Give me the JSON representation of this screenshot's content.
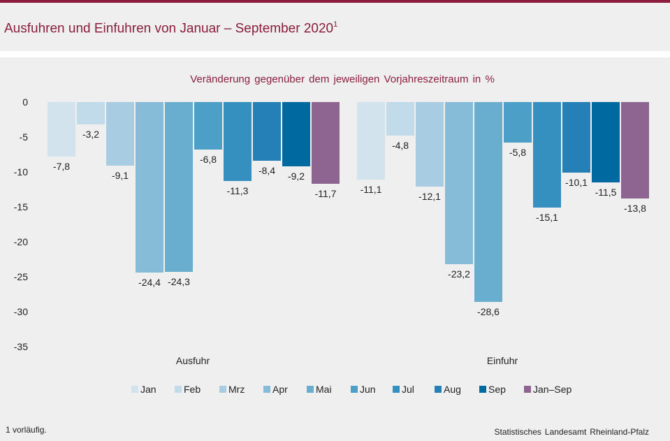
{
  "header": {
    "title": "Ausfuhren und Einfuhren von Januar – September 2020",
    "title_sup": "1"
  },
  "colors": {
    "brand": "#8b1e3f",
    "months": [
      "#d3e3ee",
      "#c2dbea",
      "#a8cde2",
      "#86bcd8",
      "#6aaecf",
      "#4c9fc6",
      "#3690bf",
      "#2480b6",
      "#006aa0",
      "#8d6590"
    ]
  },
  "chart_data": {
    "type": "bar",
    "subtitle": "Veränderung gegenüber dem jeweiligen Vorjahreszeitraum  in %",
    "categories": [
      "Ausfuhr",
      "Einfuhr"
    ],
    "series": [
      {
        "name": "Jan",
        "values": [
          -7.8,
          -11.1
        ],
        "labels": [
          "-7,8",
          "-11,1"
        ]
      },
      {
        "name": "Feb",
        "values": [
          -3.2,
          -4.8
        ],
        "labels": [
          "-3,2",
          "-4,8"
        ]
      },
      {
        "name": "Mrz",
        "values": [
          -9.1,
          -12.1
        ],
        "labels": [
          "-9,1",
          "-12,1"
        ]
      },
      {
        "name": "Apr",
        "values": [
          -24.4,
          -23.2
        ],
        "labels": [
          "-24,4",
          "-23,2"
        ]
      },
      {
        "name": "Mai",
        "values": [
          -24.3,
          -28.6
        ],
        "labels": [
          "-24,3",
          "-28,6"
        ]
      },
      {
        "name": "Jun",
        "values": [
          -6.8,
          -5.8
        ],
        "labels": [
          "-6,8",
          "-5,8"
        ]
      },
      {
        "name": "Jul",
        "values": [
          -11.3,
          -15.1
        ],
        "labels": [
          "-11,3",
          "-15,1"
        ]
      },
      {
        "name": "Aug",
        "values": [
          -8.4,
          -10.1
        ],
        "labels": [
          "-8,4",
          "-10,1"
        ]
      },
      {
        "name": "Sep",
        "values": [
          -9.2,
          -11.5
        ],
        "labels": [
          "-9,2",
          "-11,5"
        ]
      },
      {
        "name": "Jan–Sep",
        "values": [
          -11.7,
          -13.8
        ],
        "labels": [
          "-11,7",
          "-13,8"
        ]
      }
    ],
    "yticks": [
      0,
      -5,
      -10,
      -15,
      -20,
      -25,
      -30,
      -35
    ],
    "ytick_labels": [
      "0",
      "-5",
      "-10",
      "-15",
      "-20",
      "-25",
      "-30",
      "-35"
    ],
    "ylim": [
      -35,
      0
    ],
    "legend": "bottom",
    "grid": false
  },
  "footer": {
    "footnote": "1 vorläufig.",
    "source_parts": [
      "Statistisches",
      "Landesamt",
      "Rheinland-Pfalz"
    ]
  }
}
